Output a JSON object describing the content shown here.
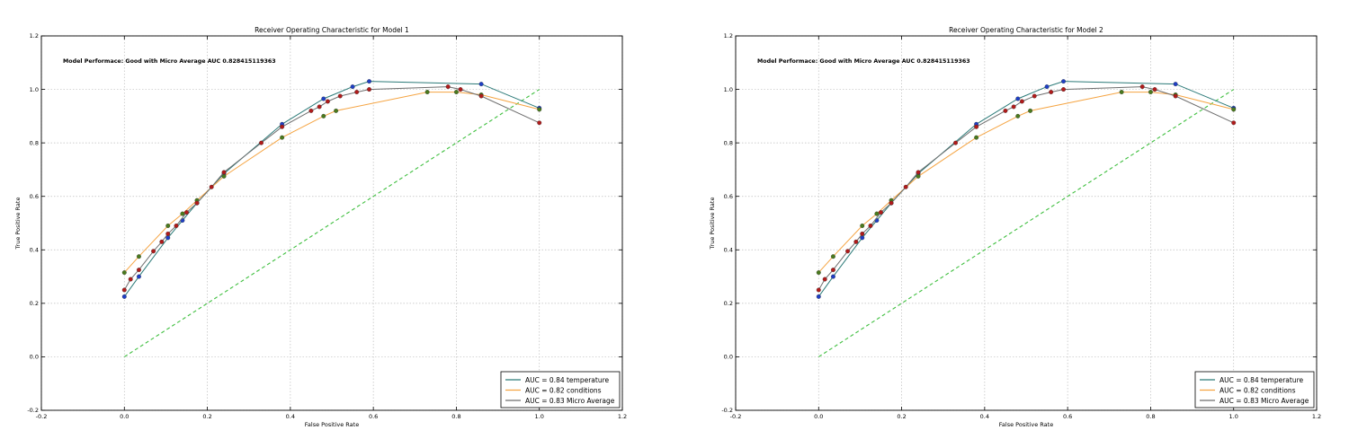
{
  "chart_data": [
    {
      "type": "line",
      "title": "Receiver Operating Characteristic for Model 1",
      "xlabel": "False Positive Rate",
      "ylabel": "True Positive Rate",
      "xlim": [
        -0.2,
        1.2
      ],
      "ylim": [
        -0.2,
        1.2
      ],
      "xticks": [
        "-0.2",
        "0.0",
        "0.2",
        "0.4",
        "0.6",
        "0.8",
        "1.0",
        "1.2"
      ],
      "yticks": [
        "-0.2",
        "0.0",
        "0.2",
        "0.4",
        "0.6",
        "0.8",
        "1.0",
        "1.2"
      ],
      "grid": true,
      "legend_position": "lower-right",
      "annotation": "Model Performace: Good with Micro Average AUC 0.828415119363",
      "series": [
        {
          "name": "AUC = 0.84 temperature",
          "color": "#2b7a78",
          "marker_color": "#1f3fc4",
          "x": [
            0.0,
            0.035,
            0.105,
            0.14,
            0.175,
            0.24,
            0.38,
            0.48,
            0.55,
            0.59,
            0.86,
            1.0
          ],
          "y": [
            0.225,
            0.3,
            0.445,
            0.51,
            0.575,
            0.685,
            0.87,
            0.965,
            1.01,
            1.03,
            1.02,
            0.93
          ]
        },
        {
          "name": "AUC = 0.82 conditions",
          "color": "#f5a442",
          "marker_color": "#4a7a1e",
          "x": [
            0.0,
            0.035,
            0.105,
            0.14,
            0.175,
            0.24,
            0.38,
            0.48,
            0.51,
            0.73,
            0.8,
            0.86,
            1.0
          ],
          "y": [
            0.315,
            0.375,
            0.49,
            0.535,
            0.585,
            0.675,
            0.82,
            0.9,
            0.92,
            0.99,
            0.99,
            0.98,
            0.925
          ]
        },
        {
          "name": "AUC = 0.83 Micro Average",
          "color": "#6e6e6e",
          "marker_color": "#b01b1b",
          "x": [
            0.0,
            0.015,
            0.035,
            0.07,
            0.09,
            0.105,
            0.125,
            0.15,
            0.175,
            0.21,
            0.24,
            0.33,
            0.38,
            0.45,
            0.47,
            0.49,
            0.52,
            0.56,
            0.59,
            0.78,
            0.81,
            0.86,
            1.0
          ],
          "y": [
            0.25,
            0.29,
            0.325,
            0.395,
            0.43,
            0.46,
            0.49,
            0.54,
            0.575,
            0.635,
            0.69,
            0.8,
            0.86,
            0.92,
            0.935,
            0.955,
            0.975,
            0.99,
            1.0,
            1.01,
            1.0,
            0.975,
            0.875
          ]
        }
      ],
      "reference_line": {
        "x": [
          0.0,
          1.0
        ],
        "y": [
          0.0,
          1.0
        ],
        "color": "#3fbf3f"
      }
    },
    {
      "type": "line",
      "title": "Receiver Operating Characteristic for Model 2",
      "xlabel": "False Positive Rate",
      "ylabel": "True Positive Rate",
      "xlim": [
        -0.2,
        1.2
      ],
      "ylim": [
        -0.2,
        1.2
      ],
      "xticks": [
        "-0.2",
        "0.0",
        "0.2",
        "0.4",
        "0.6",
        "0.8",
        "1.0",
        "1.2"
      ],
      "yticks": [
        "-0.2",
        "0.0",
        "0.2",
        "0.4",
        "0.6",
        "0.8",
        "1.0",
        "1.2"
      ],
      "grid": true,
      "legend_position": "lower-right",
      "annotation": "Model Performace: Good with Micro Average AUC 0.828415119363",
      "series": [
        {
          "name": "AUC = 0.84 temperature",
          "color": "#2b7a78",
          "marker_color": "#1f3fc4",
          "x": [
            0.0,
            0.035,
            0.105,
            0.14,
            0.175,
            0.24,
            0.38,
            0.48,
            0.55,
            0.59,
            0.86,
            1.0
          ],
          "y": [
            0.225,
            0.3,
            0.445,
            0.51,
            0.575,
            0.685,
            0.87,
            0.965,
            1.01,
            1.03,
            1.02,
            0.93
          ]
        },
        {
          "name": "AUC = 0.82 conditions",
          "color": "#f5a442",
          "marker_color": "#4a7a1e",
          "x": [
            0.0,
            0.035,
            0.105,
            0.14,
            0.175,
            0.24,
            0.38,
            0.48,
            0.51,
            0.73,
            0.8,
            0.86,
            1.0
          ],
          "y": [
            0.315,
            0.375,
            0.49,
            0.535,
            0.585,
            0.675,
            0.82,
            0.9,
            0.92,
            0.99,
            0.99,
            0.98,
            0.925
          ]
        },
        {
          "name": "AUC = 0.83 Micro Average",
          "color": "#6e6e6e",
          "marker_color": "#b01b1b",
          "x": [
            0.0,
            0.015,
            0.035,
            0.07,
            0.09,
            0.105,
            0.125,
            0.15,
            0.175,
            0.21,
            0.24,
            0.33,
            0.38,
            0.45,
            0.47,
            0.49,
            0.52,
            0.56,
            0.59,
            0.78,
            0.81,
            0.86,
            1.0
          ],
          "y": [
            0.25,
            0.29,
            0.325,
            0.395,
            0.43,
            0.46,
            0.49,
            0.54,
            0.575,
            0.635,
            0.69,
            0.8,
            0.86,
            0.92,
            0.935,
            0.955,
            0.975,
            0.99,
            1.0,
            1.01,
            1.0,
            0.975,
            0.875
          ]
        }
      ],
      "reference_line": {
        "x": [
          0.0,
          1.0
        ],
        "y": [
          0.0,
          1.0
        ],
        "color": "#3fbf3f"
      }
    }
  ]
}
